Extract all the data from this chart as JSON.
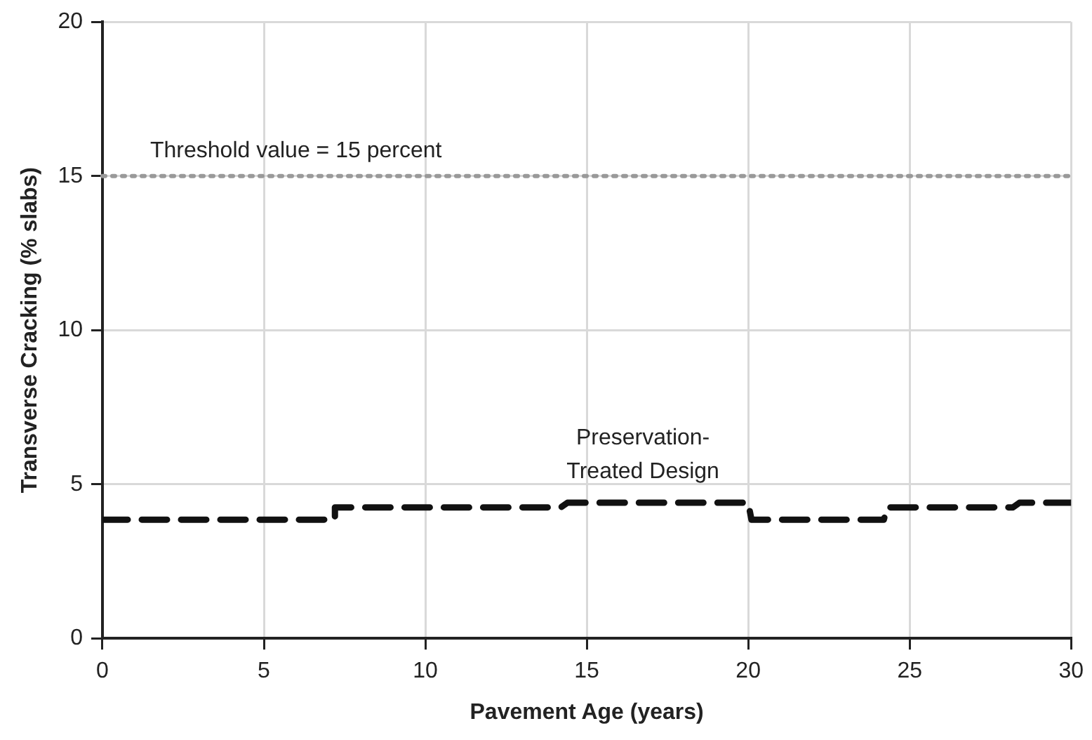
{
  "chart_data": {
    "type": "line",
    "xlabel": "Pavement Age (years)",
    "ylabel": "Transverse Cracking (% slabs)",
    "xlim": [
      0,
      30
    ],
    "xticks": [
      0,
      5,
      10,
      15,
      20,
      25,
      30
    ],
    "ylim": [
      0,
      20
    ],
    "yticks": [
      0,
      5,
      10,
      15,
      20
    ],
    "grid": true,
    "line_style": "dashed",
    "marker": "none",
    "series": [
      {
        "name": "Preservation-Treated Design",
        "color": "#111111",
        "x": [
          0,
          7.2,
          7.2,
          14.2,
          14.4,
          20,
          20.1,
          24.2,
          24.3,
          28.2,
          28.4,
          30
        ],
        "values": [
          3.85,
          3.85,
          4.25,
          4.25,
          4.4,
          4.4,
          3.85,
          3.85,
          4.25,
          4.25,
          4.4,
          4.4
        ]
      }
    ],
    "ref_lines": [
      {
        "axis": "y",
        "value": 15,
        "label": "Threshold value = 15 percent",
        "color": "#999999",
        "line_style": "dotted"
      }
    ]
  }
}
